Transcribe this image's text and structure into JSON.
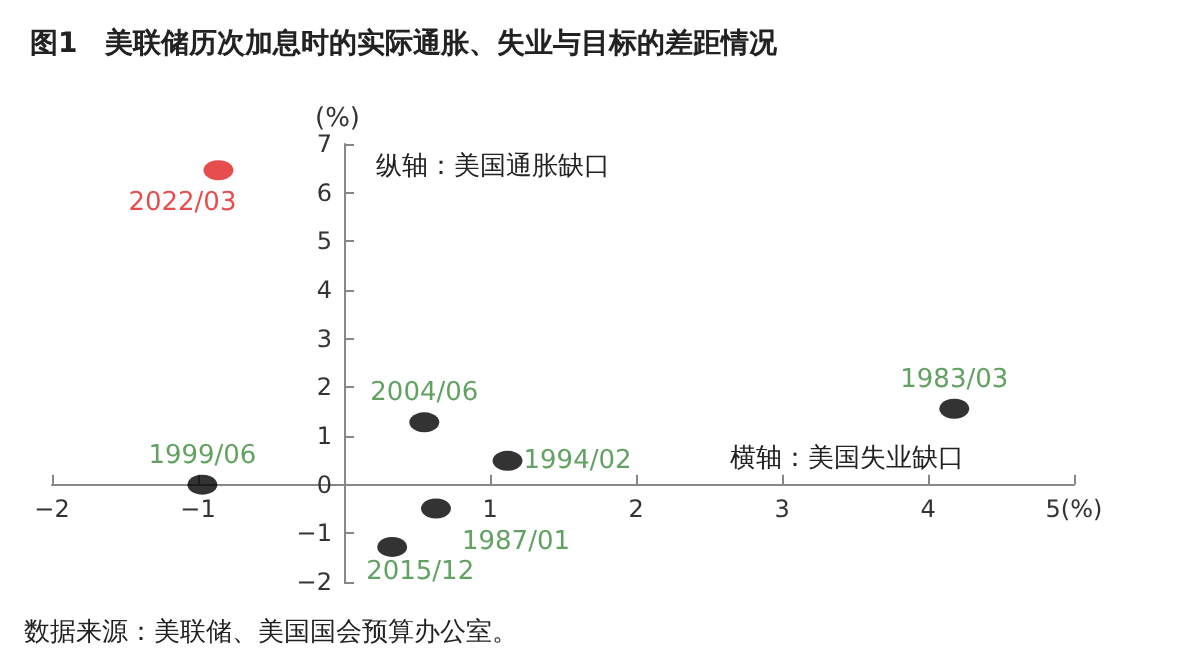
{
  "chart_data": {
    "type": "scatter",
    "title": "图1　美联储历次加息时的实际通胀、失业与目标的差距情况",
    "ylabel": "(%)",
    "series": [
      {
        "color": "#000000",
        "x": [
          -0.97,
          0.55,
          1.12,
          0.63,
          0.33,
          4.18
        ],
        "values": [
          0,
          1.28,
          0.49,
          -0.49,
          -1.28,
          1.56
        ]
      },
      {
        "color": "#e02020",
        "x": [
          -0.86
        ],
        "values": [
          6.46
        ]
      }
    ],
    "xlim": [
      -2,
      5
    ],
    "xticks": [
      -2,
      -1,
      {
        "value": 0,
        "label": null
      },
      1,
      2,
      3,
      4,
      {
        "value": 5,
        "label": "5(%)"
      }
    ],
    "ylim": [
      -2,
      7
    ],
    "yticks": [
      -2,
      -1,
      0,
      1,
      2,
      3,
      4,
      5,
      6,
      7
    ],
    "marker": "circle",
    "annotations": [
      "纵轴：美国通胀缺口",
      "横轴：美国失业缺口",
      "数据来源：美联储、美国国会预算办公室。",
      {
        "text": "1999/06",
        "x": -0.97,
        "y": 0
      },
      {
        "text": "2004/06",
        "x": 0.55,
        "y": 1.28
      },
      {
        "text": "1994/02",
        "x": 1.12,
        "y": 0.49
      },
      {
        "text": "1987/01",
        "x": 0.63,
        "y": -0.49
      },
      {
        "text": "2015/12",
        "x": 0.33,
        "y": -1.28
      },
      {
        "text": "1983/03",
        "x": 4.18,
        "y": 1.56
      },
      {
        "text": "2022/03",
        "x": -0.86,
        "y": 6.46
      }
    ]
  }
}
